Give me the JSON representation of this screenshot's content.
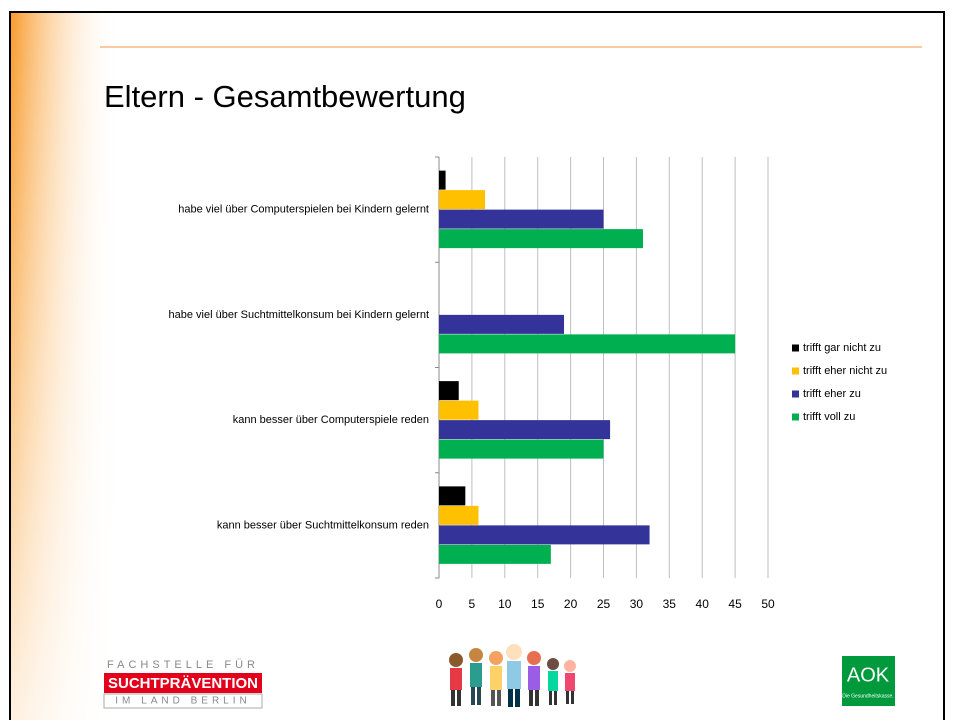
{
  "title": "Eltern - Gesamtbewertung",
  "chart_data": {
    "type": "bar",
    "orientation": "horizontal",
    "categories": [
      "habe viel über Computerspielen bei Kindern gelernt",
      "habe viel über Suchtmittelkonsum bei Kindern gelernt",
      "kann besser über Computerspiele reden",
      "kann besser über Suchtmittelkonsum reden"
    ],
    "series": [
      {
        "name": "trifft gar nicht zu",
        "color": "#000000",
        "values": [
          1,
          0,
          3,
          4
        ]
      },
      {
        "name": "trifft eher nicht zu",
        "color": "#ffc000",
        "values": [
          7,
          0,
          6,
          6
        ]
      },
      {
        "name": "trifft eher zu",
        "color": "#333399",
        "values": [
          25,
          19,
          26,
          32
        ]
      },
      {
        "name": "trifft voll zu",
        "color": "#00b050",
        "values": [
          31,
          45,
          25,
          17
        ]
      }
    ],
    "xlim": [
      0,
      50
    ],
    "xticks": [
      0,
      5,
      10,
      15,
      20,
      25,
      30,
      35,
      40,
      45,
      50
    ],
    "grid": true,
    "legend": "right"
  },
  "logos": {
    "fachstelle": [
      "FACHSTELLE FÜR",
      "SUCHTPRÄVENTION",
      "IM LAND BERLIN"
    ],
    "aok": {
      "name": "AOK",
      "tagline": "Die Gesundheitskasse."
    }
  }
}
